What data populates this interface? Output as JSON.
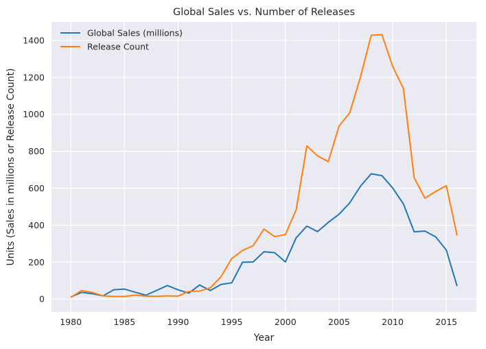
{
  "chart_data": {
    "type": "line",
    "title": "Global Sales vs. Number of Releases",
    "xlabel": "Year",
    "ylabel": "Units (Sales in millions or Release Count)",
    "xlim": [
      1978.2,
      2017.8
    ],
    "ylim": [
      -70,
      1500
    ],
    "xticks": [
      1980,
      1985,
      1990,
      1995,
      2000,
      2005,
      2010,
      2015
    ],
    "yticks": [
      0,
      200,
      400,
      600,
      800,
      1000,
      1200,
      1400
    ],
    "grid": true,
    "legend": "top-left",
    "x": [
      1980,
      1981,
      1982,
      1983,
      1984,
      1985,
      1986,
      1987,
      1988,
      1989,
      1990,
      1991,
      1992,
      1993,
      1994,
      1995,
      1996,
      1997,
      1998,
      1999,
      2000,
      2001,
      2002,
      2003,
      2004,
      2005,
      2006,
      2007,
      2008,
      2009,
      2010,
      2011,
      2012,
      2013,
      2014,
      2015,
      2016
    ],
    "series": [
      {
        "name": "Global Sales (millions)",
        "color": "#1f77b4",
        "values": [
          11,
          36,
          29,
          17,
          50,
          54,
          37,
          21,
          47,
          73,
          50,
          32,
          76,
          46,
          79,
          88,
          199,
          201,
          256,
          251,
          201,
          331,
          395,
          365,
          415,
          459,
          521,
          611,
          678,
          668,
          601,
          515,
          364,
          368,
          337,
          265,
          70
        ]
      },
      {
        "name": "Release Count",
        "color": "#ff7f0e",
        "values": [
          9,
          46,
          36,
          17,
          14,
          14,
          21,
          16,
          15,
          17,
          16,
          41,
          43,
          60,
          121,
          219,
          263,
          289,
          379,
          338,
          349,
          482,
          829,
          775,
          744,
          936,
          1008,
          1202,
          1428,
          1431,
          1259,
          1139,
          657,
          546,
          582,
          614,
          344
        ]
      }
    ]
  }
}
